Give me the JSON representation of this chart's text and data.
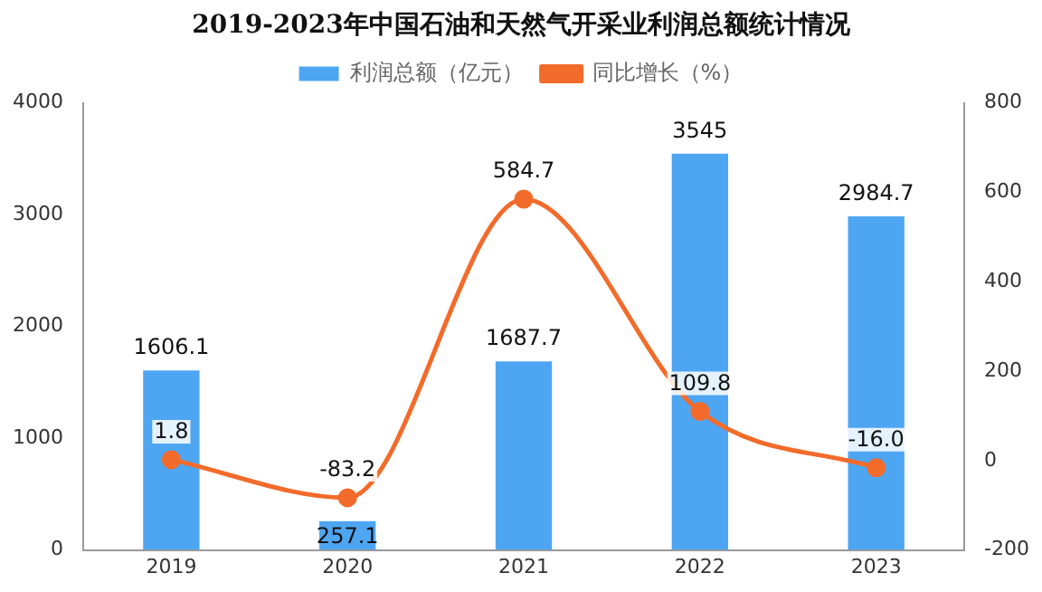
{
  "chart_data": {
    "type": "bar",
    "title": "2019-2023年中国石油和天然气开采业利润总额统计情况",
    "categories": [
      "2019",
      "2020",
      "2021",
      "2022",
      "2023"
    ],
    "series": [
      {
        "name": "利润总额（亿元）",
        "color": "#4ea6f2",
        "values": [
          1606.1,
          257.1,
          1687.7,
          3545,
          2984.7
        ],
        "value_labels": [
          "1606.1",
          "257.1",
          "1687.7",
          "3545",
          "2984.7"
        ]
      },
      {
        "name": "同比增长（%）",
        "type": "line",
        "axis": "y2",
        "color": "#f26b2b",
        "values": [
          1.8,
          -83.2,
          584.7,
          109.8,
          -16.0
        ],
        "value_labels": [
          "1.8",
          "-83.2",
          "584.7",
          "109.8",
          "-16.0"
        ]
      }
    ],
    "ylim": [
      0,
      4000
    ],
    "yticks": [
      0,
      1000,
      2000,
      3000,
      4000
    ],
    "y2lim": [
      -200,
      800
    ],
    "y2ticks": [
      -200,
      0,
      200,
      400,
      600,
      800
    ],
    "grid": false,
    "legend": "top",
    "marker": "circle",
    "line_style": "solid"
  }
}
